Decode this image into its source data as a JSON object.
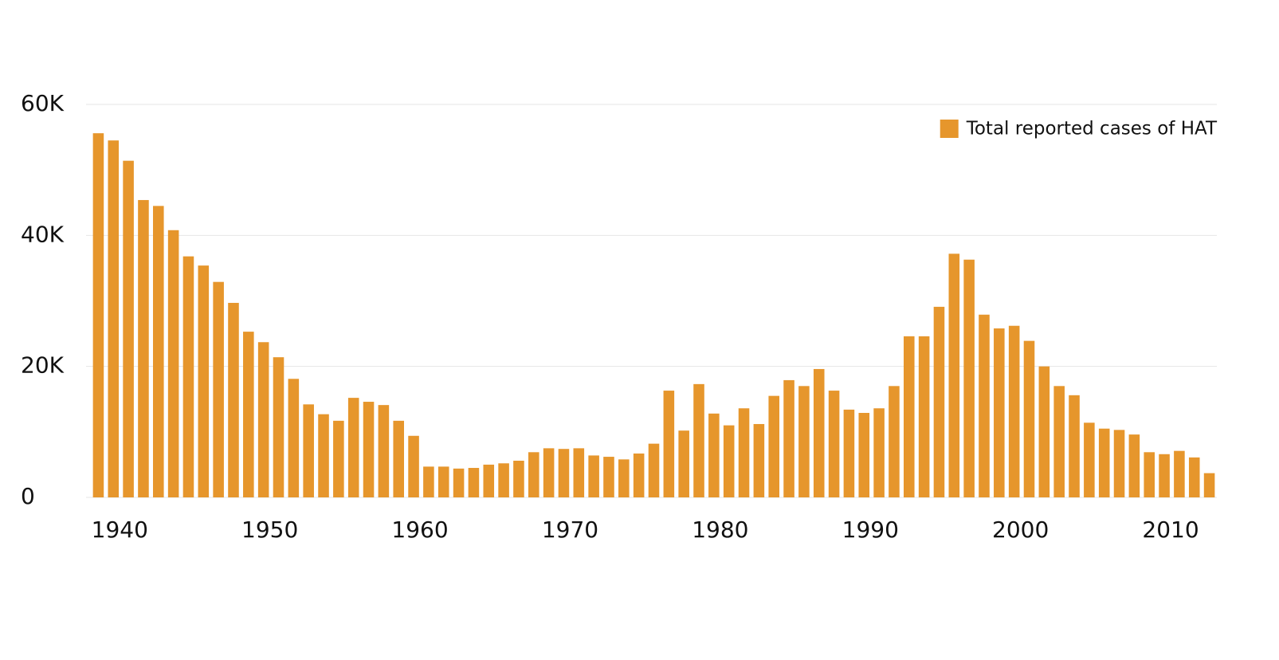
{
  "chart_data": {
    "type": "bar",
    "x": [
      1939,
      1940,
      1941,
      1942,
      1943,
      1944,
      1945,
      1946,
      1947,
      1948,
      1949,
      1950,
      1951,
      1952,
      1953,
      1954,
      1955,
      1956,
      1957,
      1958,
      1959,
      1960,
      1961,
      1962,
      1963,
      1964,
      1965,
      1966,
      1967,
      1968,
      1969,
      1970,
      1971,
      1972,
      1973,
      1974,
      1975,
      1976,
      1977,
      1978,
      1979,
      1980,
      1981,
      1982,
      1983,
      1984,
      1985,
      1986,
      1987,
      1988,
      1989,
      1990,
      1991,
      1992,
      1993,
      1994,
      1995,
      1996,
      1997,
      1998,
      1999,
      2000,
      2001,
      2002,
      2003,
      2004,
      2005,
      2006,
      2007,
      2008,
      2009,
      2010,
      2011,
      2012,
      2013
    ],
    "series": [
      {
        "name": "Total reported cases of HAT",
        "color": "#e6962c",
        "values": [
          55600,
          54500,
          51400,
          45400,
          44500,
          40800,
          36800,
          35400,
          32900,
          29700,
          25300,
          23700,
          21400,
          18100,
          14200,
          12700,
          11700,
          15200,
          14600,
          14100,
          11700,
          9400,
          4700,
          4700,
          4400,
          4500,
          5000,
          5200,
          5600,
          6900,
          7500,
          7400,
          7500,
          6400,
          6200,
          5800,
          6700,
          8200,
          16300,
          10200,
          17300,
          12800,
          11000,
          13600,
          11200,
          15500,
          17900,
          17000,
          19600,
          16300,
          13400,
          12900,
          13600,
          17000,
          24600,
          24600,
          29100,
          37200,
          36300,
          27900,
          25800,
          26200,
          23900,
          20000,
          17000,
          15600,
          11400,
          10500,
          10300,
          9600,
          6900,
          6600,
          7100,
          6100,
          3700
        ]
      }
    ],
    "xlim": [
      1938.5,
      2013.5
    ],
    "xticks": [
      1940,
      1950,
      1960,
      1970,
      1980,
      1990,
      2000,
      2010
    ],
    "ylim": [
      0,
      60000
    ],
    "yticks": [
      0,
      {
        "value": 20000,
        "label": "20K"
      },
      {
        "value": 40000,
        "label": "40K"
      },
      {
        "value": 60000,
        "label": "60K"
      }
    ],
    "grid": true,
    "legend": "upper right"
  }
}
